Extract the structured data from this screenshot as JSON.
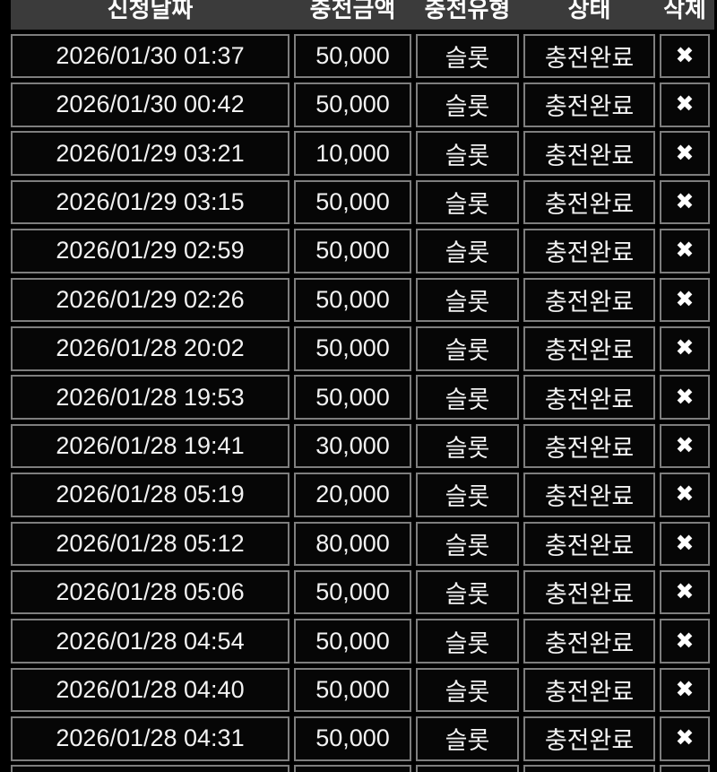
{
  "colors": {
    "page_background": "#000000",
    "header_background": "#3b3b3b",
    "cell_background": "#060606",
    "cell_border": "#7e7e7e",
    "text": "#f2f2f2"
  },
  "icons": {
    "delete_x": "✖"
  },
  "table": {
    "columns": [
      {
        "key": "date",
        "label": "신청날짜"
      },
      {
        "key": "amount",
        "label": "충전금액"
      },
      {
        "key": "type",
        "label": "충전유형"
      },
      {
        "key": "status",
        "label": "상태"
      },
      {
        "key": "delete",
        "label": "삭제"
      }
    ],
    "rows": [
      {
        "date": "2026/01/30 01:37",
        "amount": "50,000",
        "type": "슬롯",
        "status": "충전완료"
      },
      {
        "date": "2026/01/30 00:42",
        "amount": "50,000",
        "type": "슬롯",
        "status": "충전완료"
      },
      {
        "date": "2026/01/29 03:21",
        "amount": "10,000",
        "type": "슬롯",
        "status": "충전완료"
      },
      {
        "date": "2026/01/29 03:15",
        "amount": "50,000",
        "type": "슬롯",
        "status": "충전완료"
      },
      {
        "date": "2026/01/29 02:59",
        "amount": "50,000",
        "type": "슬롯",
        "status": "충전완료"
      },
      {
        "date": "2026/01/29 02:26",
        "amount": "50,000",
        "type": "슬롯",
        "status": "충전완료"
      },
      {
        "date": "2026/01/28 20:02",
        "amount": "50,000",
        "type": "슬롯",
        "status": "충전완료"
      },
      {
        "date": "2026/01/28 19:53",
        "amount": "50,000",
        "type": "슬롯",
        "status": "충전완료"
      },
      {
        "date": "2026/01/28 19:41",
        "amount": "30,000",
        "type": "슬롯",
        "status": "충전완료"
      },
      {
        "date": "2026/01/28 05:19",
        "amount": "20,000",
        "type": "슬롯",
        "status": "충전완료"
      },
      {
        "date": "2026/01/28 05:12",
        "amount": "80,000",
        "type": "슬롯",
        "status": "충전완료"
      },
      {
        "date": "2026/01/28 05:06",
        "amount": "50,000",
        "type": "슬롯",
        "status": "충전완료"
      },
      {
        "date": "2026/01/28 04:54",
        "amount": "50,000",
        "type": "슬롯",
        "status": "충전완료"
      },
      {
        "date": "2026/01/28 04:40",
        "amount": "50,000",
        "type": "슬롯",
        "status": "충전완료"
      },
      {
        "date": "2026/01/28 04:31",
        "amount": "50,000",
        "type": "슬롯",
        "status": "충전완료"
      }
    ],
    "partial_row_visible": true
  }
}
